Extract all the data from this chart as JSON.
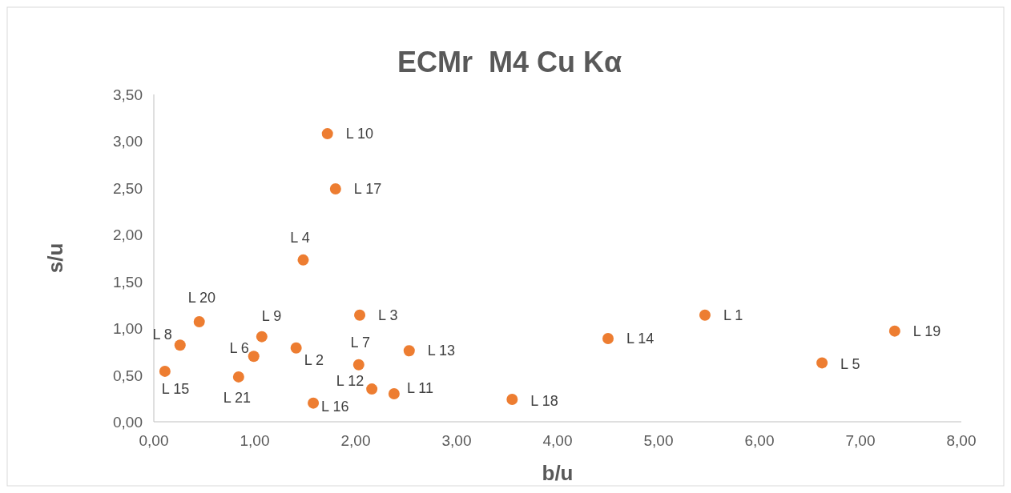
{
  "chart_data": {
    "type": "scatter",
    "title": "ECMr  M4 Cu Kα",
    "xlabel": "b/u",
    "ylabel": "s/u",
    "x": [
      5.46,
      7.34,
      6.62,
      4.5,
      3.55,
      2.53,
      2.38,
      2.16,
      2.03,
      2.04,
      1.72,
      1.8,
      1.48,
      1.41,
      1.58,
      1.07,
      0.99,
      0.84,
      0.45,
      0.26,
      0.11
    ],
    "series": [
      {
        "color": "#ed7d31",
        "values": [
          1.14,
          0.97,
          0.63,
          0.89,
          0.24,
          0.76,
          0.3,
          0.35,
          0.61,
          1.14,
          3.08,
          2.49,
          1.73,
          0.79,
          0.2,
          0.91,
          0.7,
          0.48,
          1.07,
          0.82,
          0.54
        ]
      }
    ],
    "annotations": [
      {
        "text": "L 1",
        "x": 5.46,
        "y": 1.14
      },
      {
        "text": "L 19",
        "x": 7.34,
        "y": 0.97
      },
      {
        "text": "L 5",
        "x": 6.62,
        "y": 0.63
      },
      {
        "text": "L 14",
        "x": 4.5,
        "y": 0.89
      },
      {
        "text": "L 18",
        "x": 3.55,
        "y": 0.24
      },
      {
        "text": "L 13",
        "x": 2.53,
        "y": 0.76
      },
      {
        "text": "L 11",
        "x": 2.38,
        "y": 0.3
      },
      {
        "text": "L 12",
        "x": 2.16,
        "y": 0.35
      },
      {
        "text": "L 7",
        "x": 2.03,
        "y": 0.61
      },
      {
        "text": "L 3",
        "x": 2.04,
        "y": 1.14
      },
      {
        "text": "L 10",
        "x": 1.72,
        "y": 3.08
      },
      {
        "text": "L 17",
        "x": 1.8,
        "y": 2.49
      },
      {
        "text": "L 4",
        "x": 1.48,
        "y": 1.73
      },
      {
        "text": "L 2",
        "x": 1.41,
        "y": 0.79
      },
      {
        "text": "L 16",
        "x": 1.58,
        "y": 0.2
      },
      {
        "text": "L 9",
        "x": 1.07,
        "y": 0.91
      },
      {
        "text": "L 6",
        "x": 0.99,
        "y": 0.7
      },
      {
        "text": "L 21",
        "x": 0.84,
        "y": 0.48
      },
      {
        "text": "L 20",
        "x": 0.45,
        "y": 1.07
      },
      {
        "text": "L 8",
        "x": 0.26,
        "y": 0.82
      },
      {
        "text": "L 15",
        "x": 0.11,
        "y": 0.54
      }
    ],
    "xlim": [
      0,
      8
    ],
    "ylim": [
      0,
      3.5
    ],
    "xticks": [
      {
        "value": 0,
        "label": "0,00"
      },
      {
        "value": 1,
        "label": "1,00"
      },
      {
        "value": 2,
        "label": "2,00"
      },
      {
        "value": 3,
        "label": "3,00"
      },
      {
        "value": 4,
        "label": "4,00"
      },
      {
        "value": 5,
        "label": "5,00"
      },
      {
        "value": 6,
        "label": "6,00"
      },
      {
        "value": 7,
        "label": "7,00"
      },
      {
        "value": 8,
        "label": "8,00"
      }
    ],
    "yticks": [
      {
        "value": 0,
        "label": "0,00"
      },
      {
        "value": 0.5,
        "label": "0,50"
      },
      {
        "value": 1,
        "label": "1,00"
      },
      {
        "value": 1.5,
        "label": "1,50"
      },
      {
        "value": 2,
        "label": "2,00"
      },
      {
        "value": 2.5,
        "label": "2,50"
      },
      {
        "value": 3,
        "label": "3,00"
      },
      {
        "value": 3.5,
        "label": "3,50"
      }
    ],
    "marker": "circle",
    "grid": false
  }
}
